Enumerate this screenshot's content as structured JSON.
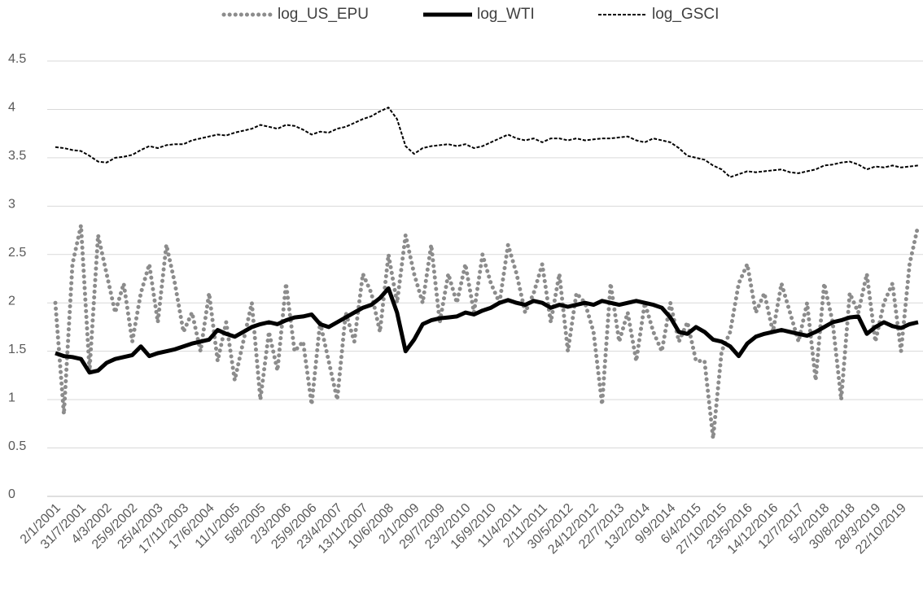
{
  "chart_data": {
    "type": "line",
    "categories": [
      "2/1/2001",
      null,
      null,
      "31/7/2001",
      null,
      null,
      "4/3/2002",
      null,
      null,
      "25/9/2002",
      null,
      null,
      "25/4/2003",
      null,
      null,
      "17/11/2003",
      null,
      null,
      "17/6/2004",
      null,
      null,
      "11/1/2005",
      null,
      null,
      "5/8/2005",
      null,
      null,
      "2/3/2006",
      null,
      null,
      "25/9/2006",
      null,
      null,
      "23/4/2007",
      null,
      null,
      "13/11/2007",
      null,
      null,
      "10/6/2008",
      null,
      null,
      "2/1/2009",
      null,
      null,
      "29/7/2009",
      null,
      null,
      "23/2/2010",
      null,
      null,
      "16/9/2010",
      null,
      null,
      "11/4/2011",
      null,
      null,
      "2/11/2011",
      null,
      null,
      "30/5/2012",
      null,
      null,
      "24/12/2012",
      null,
      null,
      "22/7/2013",
      null,
      null,
      "13/2/2014",
      null,
      null,
      "9/9/2014",
      null,
      null,
      "6/4/2015",
      null,
      null,
      "27/10/2015",
      null,
      null,
      "23/5/2016",
      null,
      null,
      "14/12/2016",
      null,
      null,
      "12/7/2017",
      null,
      null,
      "5/2/2018",
      null,
      null,
      "30/8/2018",
      null,
      null,
      "28/3/2019",
      null,
      null,
      "22/10/2019",
      null,
      null
    ],
    "series": [
      {
        "name": "log_US_EPU",
        "color": "#8c8c8c",
        "line_style": "dotted",
        "values": [
          2.0,
          0.85,
          2.4,
          2.8,
          1.3,
          2.7,
          2.3,
          1.9,
          2.2,
          1.6,
          2.1,
          2.4,
          1.8,
          2.6,
          2.2,
          1.7,
          1.9,
          1.5,
          2.1,
          1.4,
          1.8,
          1.2,
          1.6,
          2.0,
          1.0,
          1.7,
          1.3,
          2.2,
          1.5,
          1.6,
          0.95,
          1.8,
          1.4,
          1.0,
          1.9,
          1.6,
          2.3,
          2.1,
          1.7,
          2.5,
          2.0,
          2.7,
          2.3,
          2.0,
          2.6,
          1.8,
          2.3,
          2.0,
          2.4,
          1.9,
          2.5,
          2.2,
          2.0,
          2.6,
          2.3,
          1.9,
          2.1,
          2.4,
          1.8,
          2.3,
          1.5,
          2.1,
          2.0,
          1.7,
          0.95,
          2.2,
          1.6,
          1.9,
          1.4,
          2.0,
          1.7,
          1.5,
          2.0,
          1.6,
          1.8,
          1.4,
          1.4,
          0.6,
          1.5,
          1.7,
          2.2,
          2.4,
          1.9,
          2.1,
          1.7,
          2.2,
          1.9,
          1.6,
          2.0,
          1.2,
          2.2,
          1.8,
          1.0,
          2.1,
          1.9,
          2.3,
          1.6,
          2.0,
          2.2,
          1.5,
          2.4,
          2.8
        ]
      },
      {
        "name": "log_WTI",
        "color": "#000000",
        "line_style": "solid",
        "values": [
          1.48,
          1.45,
          1.44,
          1.42,
          1.28,
          1.3,
          1.38,
          1.42,
          1.44,
          1.46,
          1.55,
          1.45,
          1.48,
          1.5,
          1.52,
          1.55,
          1.58,
          1.6,
          1.62,
          1.72,
          1.68,
          1.65,
          1.7,
          1.75,
          1.78,
          1.8,
          1.78,
          1.82,
          1.85,
          1.86,
          1.88,
          1.78,
          1.75,
          1.8,
          1.85,
          1.9,
          1.95,
          1.98,
          2.05,
          2.15,
          1.9,
          1.5,
          1.62,
          1.78,
          1.82,
          1.84,
          1.85,
          1.86,
          1.9,
          1.88,
          1.92,
          1.95,
          2.0,
          2.03,
          2.0,
          1.98,
          2.02,
          2.0,
          1.95,
          1.98,
          1.96,
          1.98,
          2.0,
          1.98,
          2.02,
          2.0,
          1.98,
          2.0,
          2.02,
          2.0,
          1.98,
          1.95,
          1.85,
          1.7,
          1.68,
          1.75,
          1.7,
          1.62,
          1.6,
          1.55,
          1.45,
          1.58,
          1.65,
          1.68,
          1.7,
          1.72,
          1.7,
          1.68,
          1.66,
          1.7,
          1.75,
          1.8,
          1.82,
          1.85,
          1.86,
          1.68,
          1.75,
          1.8,
          1.76,
          1.74,
          1.78,
          1.8
        ]
      },
      {
        "name": "log_GSCI",
        "color": "#000000",
        "line_style": "dashed",
        "values": [
          3.61,
          3.6,
          3.58,
          3.57,
          3.52,
          3.46,
          3.45,
          3.5,
          3.51,
          3.53,
          3.58,
          3.62,
          3.6,
          3.63,
          3.64,
          3.64,
          3.68,
          3.7,
          3.72,
          3.74,
          3.73,
          3.76,
          3.78,
          3.8,
          3.84,
          3.82,
          3.8,
          3.84,
          3.83,
          3.79,
          3.74,
          3.77,
          3.76,
          3.8,
          3.82,
          3.86,
          3.9,
          3.93,
          3.98,
          4.02,
          3.9,
          3.62,
          3.54,
          3.6,
          3.62,
          3.63,
          3.64,
          3.62,
          3.64,
          3.6,
          3.62,
          3.66,
          3.7,
          3.74,
          3.7,
          3.68,
          3.7,
          3.66,
          3.7,
          3.7,
          3.68,
          3.7,
          3.68,
          3.69,
          3.7,
          3.7,
          3.71,
          3.72,
          3.68,
          3.66,
          3.7,
          3.68,
          3.66,
          3.6,
          3.52,
          3.5,
          3.48,
          3.42,
          3.38,
          3.3,
          3.33,
          3.36,
          3.35,
          3.36,
          3.37,
          3.38,
          3.35,
          3.34,
          3.36,
          3.38,
          3.42,
          3.43,
          3.45,
          3.46,
          3.43,
          3.38,
          3.41,
          3.4,
          3.42,
          3.4,
          3.41,
          3.42
        ]
      }
    ],
    "ylim": [
      0,
      4.5
    ],
    "yticks": [
      0,
      0.5,
      1,
      1.5,
      2,
      2.5,
      3,
      3.5,
      4,
      4.5
    ],
    "grid": true,
    "legend": "top"
  }
}
